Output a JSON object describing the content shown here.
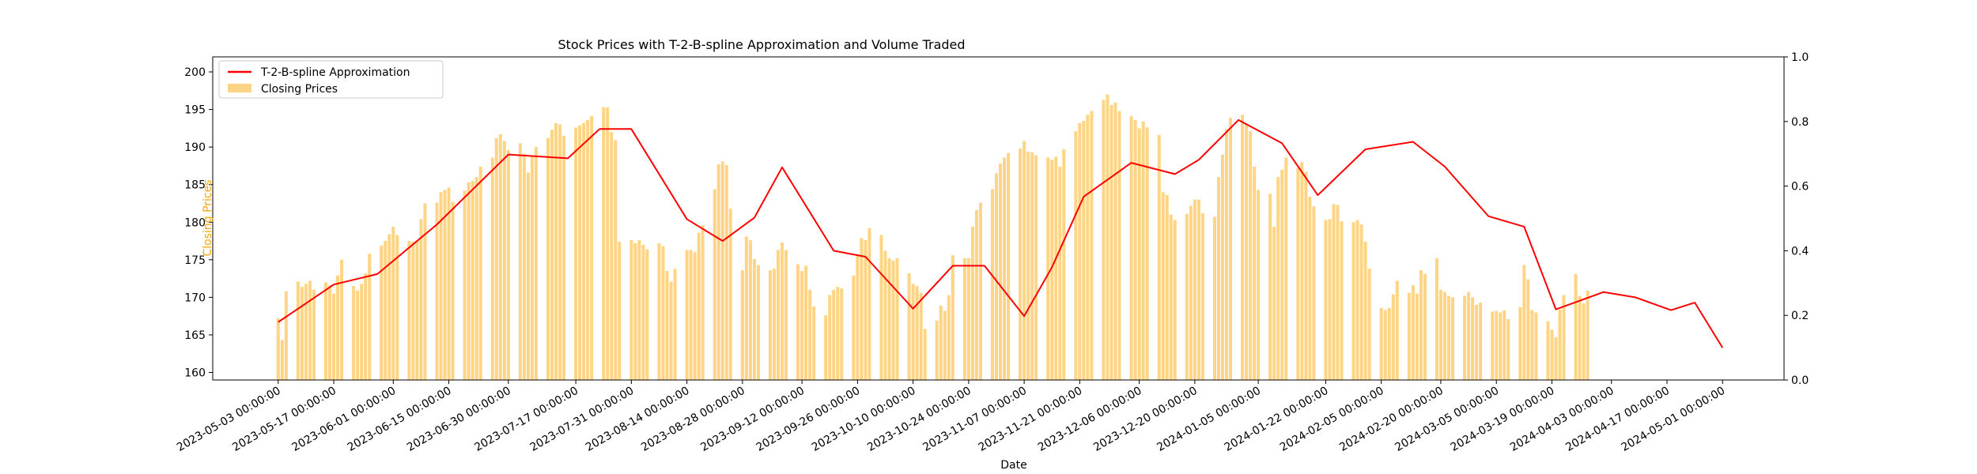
{
  "chart_data": {
    "type": "bar",
    "title": "Stock Prices with T-2-B-spline Approximation and Volume Traded",
    "xlabel": "Date",
    "ylabel": "Closing Prices",
    "y2label": "",
    "ylim": [
      159,
      202
    ],
    "y2lim": [
      0,
      1
    ],
    "yticks": [
      160,
      165,
      170,
      175,
      180,
      185,
      190,
      195,
      200
    ],
    "y2ticks": [
      "0.0",
      "0.2",
      "0.4",
      "0.6",
      "0.8",
      "1.0"
    ],
    "date_start": "2023-05-03",
    "xlim_days": [
      -16.5,
      379.5
    ],
    "legend_position": "upper left",
    "colors": {
      "bars": "#ffc966",
      "spline": "#ff0000",
      "ylabel": "#ffa500"
    },
    "xticks": [
      {
        "day": 0,
        "label": "2023-05-03 00:00:00"
      },
      {
        "day": 14,
        "label": "2023-05-17 00:00:00"
      },
      {
        "day": 29,
        "label": "2023-06-01 00:00:00"
      },
      {
        "day": 43,
        "label": "2023-06-15 00:00:00"
      },
      {
        "day": 58,
        "label": "2023-06-30 00:00:00"
      },
      {
        "day": 75,
        "label": "2023-07-17 00:00:00"
      },
      {
        "day": 89,
        "label": "2023-07-31 00:00:00"
      },
      {
        "day": 103,
        "label": "2023-08-14 00:00:00"
      },
      {
        "day": 117,
        "label": "2023-08-28 00:00:00"
      },
      {
        "day": 132,
        "label": "2023-09-12 00:00:00"
      },
      {
        "day": 146,
        "label": "2023-09-26 00:00:00"
      },
      {
        "day": 160,
        "label": "2023-10-10 00:00:00"
      },
      {
        "day": 174,
        "label": "2023-10-24 00:00:00"
      },
      {
        "day": 188,
        "label": "2023-11-07 00:00:00"
      },
      {
        "day": 202,
        "label": "2023-11-21 00:00:00"
      },
      {
        "day": 217,
        "label": "2023-12-06 00:00:00"
      },
      {
        "day": 231,
        "label": "2023-12-20 00:00:00"
      },
      {
        "day": 247,
        "label": "2024-01-05 00:00:00"
      },
      {
        "day": 264,
        "label": "2024-01-22 00:00:00"
      },
      {
        "day": 278,
        "label": "2024-02-05 00:00:00"
      },
      {
        "day": 293,
        "label": "2024-02-20 00:00:00"
      },
      {
        "day": 307,
        "label": "2024-03-05 00:00:00"
      },
      {
        "day": 321,
        "label": "2024-03-19 00:00:00"
      },
      {
        "day": 336,
        "label": "2024-04-03 00:00:00"
      },
      {
        "day": 350,
        "label": "2024-04-17 00:00:00"
      },
      {
        "day": 364,
        "label": "2024-05-01 00:00:00"
      }
    ],
    "closing_prices": {
      "name": "Closing Prices",
      "values": [
        167.2,
        164.3,
        170.8,
        172.1,
        171.4,
        171.8,
        172.2,
        171.0,
        172.0,
        171.6,
        170.5,
        172.9,
        175.0,
        171.5,
        170.9,
        171.8,
        173.2,
        175.8,
        176.9,
        177.5,
        178.4,
        179.4,
        178.3,
        177.5,
        177.4,
        177.6,
        180.4,
        182.5,
        182.6,
        184.0,
        184.3,
        184.6,
        182.7,
        184.2,
        185.3,
        185.5,
        186.0,
        187.4,
        188.6,
        191.2,
        191.7,
        190.8,
        189.6,
        190.5,
        189.1,
        186.6,
        188.7,
        190.0,
        191.2,
        192.3,
        193.2,
        193.0,
        191.5,
        192.6,
        192.9,
        193.2,
        193.6,
        194.1,
        195.3,
        195.3,
        192.0,
        190.9,
        177.4,
        177.6,
        177.2,
        177.6,
        177.0,
        176.4,
        177.2,
        176.8,
        173.5,
        172.1,
        173.8,
        176.3,
        176.3,
        176.0,
        178.6,
        179.6,
        184.4,
        187.7,
        188.1,
        187.6,
        181.8,
        173.6,
        178.1,
        177.6,
        175.1,
        174.3,
        173.6,
        173.8,
        176.3,
        177.3,
        176.3,
        174.4,
        173.5,
        174.2,
        171.0,
        168.8,
        167.6,
        170.3,
        171.0,
        171.4,
        171.2,
        172.9,
        175.7,
        177.9,
        177.6,
        179.2,
        178.3,
        176.2,
        175.2,
        174.9,
        175.2,
        173.2,
        171.8,
        171.5,
        170.6,
        165.8,
        166.9,
        168.9,
        168.2,
        170.3,
        175.6,
        175.2,
        175.2,
        179.4,
        181.6,
        182.6,
        184.4,
        186.5,
        187.8,
        188.6,
        189.2,
        189.8,
        190.8,
        189.4,
        189.3,
        188.9,
        188.6,
        188.3,
        188.7,
        187.4,
        189.7,
        192.1,
        193.2,
        193.5,
        194.3,
        194.8,
        196.3,
        197.0,
        195.6,
        195.9,
        194.8,
        194.1,
        193.6,
        192.5,
        193.4,
        192.6,
        191.6,
        184.0,
        183.6,
        181.0,
        180.3,
        181.1,
        182.2,
        183.0,
        183.0,
        181.2,
        180.7,
        186.0,
        189.0,
        192.4,
        193.9,
        194.3,
        193.1,
        192.1,
        187.4,
        184.3,
        183.8,
        179.4,
        186.0,
        187.0,
        188.6,
        187.2,
        188.0,
        186.7,
        183.4,
        182.1,
        180.3,
        180.4,
        182.4,
        182.3,
        180.1,
        180.0,
        180.3,
        179.7,
        177.4,
        173.8,
        168.6,
        168.3,
        168.6,
        170.4,
        172.2,
        170.6,
        171.6,
        170.5,
        173.6,
        173.1,
        175.2,
        171.0,
        170.7,
        170.2,
        170.0,
        170.2,
        170.7,
        170.0,
        169.0,
        169.3,
        168.1,
        168.2,
        168.0,
        168.3,
        167.1,
        168.7,
        174.3,
        172.4,
        168.3,
        168.0,
        166.8,
        165.7,
        164.7,
        168.4,
        170.3,
        173.1,
        170.2,
        169.2,
        170.9
      ]
    },
    "spline": {
      "name": "T-2-B-spline Approximation",
      "x": [
        0,
        14,
        25,
        40,
        58,
        73,
        81,
        89,
        103,
        112,
        120,
        127,
        140,
        148,
        160,
        170,
        178,
        188,
        195,
        203,
        215,
        226,
        232,
        242,
        253,
        262,
        274,
        286,
        294,
        305,
        314,
        322,
        334,
        342,
        351,
        357,
        364
      ],
      "y": [
        166.7,
        171.7,
        173.1,
        179.7,
        189.0,
        188.5,
        192.4,
        192.4,
        180.4,
        177.5,
        180.6,
        187.3,
        176.2,
        175.4,
        168.5,
        174.2,
        174.2,
        167.5,
        174.0,
        183.4,
        187.9,
        186.4,
        188.3,
        193.6,
        190.5,
        183.6,
        189.7,
        190.7,
        187.4,
        180.8,
        179.4,
        168.4,
        170.7,
        170.0,
        168.3,
        169.3,
        163.3
      ]
    }
  }
}
